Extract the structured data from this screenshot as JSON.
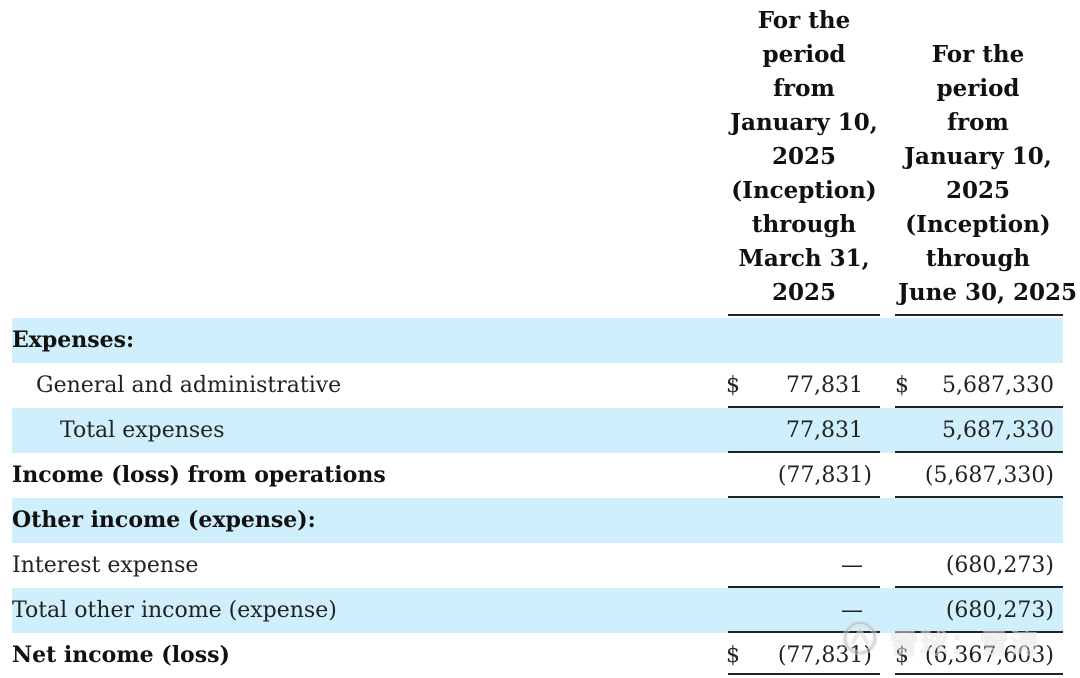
{
  "columns": {
    "col1_header": [
      "For the",
      "period",
      "from",
      "January 10,",
      "2025",
      "(Inception)",
      "through",
      "March 31,",
      "2025"
    ],
    "col2_header": [
      "For the",
      "period",
      "from",
      "January 10,",
      "2025",
      "(Inception)",
      "through",
      "June 30, 2025"
    ]
  },
  "rows": [
    {
      "label": "Expenses:",
      "cur1": "",
      "val1": "",
      "cur2": "",
      "val2": ""
    },
    {
      "label": "General and administrative",
      "cur1": "$",
      "val1": "77,831",
      "cur2": "$",
      "val2": "5,687,330"
    },
    {
      "label": "Total expenses",
      "cur1": "",
      "val1": "77,831",
      "cur2": "",
      "val2": "5,687,330"
    },
    {
      "label": "Income (loss) from operations",
      "cur1": "",
      "val1": "(77,831)",
      "cur2": "",
      "val2": "(5,687,330)"
    },
    {
      "label": "Other income (expense):",
      "cur1": "",
      "val1": "",
      "cur2": "",
      "val2": ""
    },
    {
      "label": "Interest expense",
      "cur1": "",
      "val1": "—",
      "cur2": "",
      "val2": "(680,273)"
    },
    {
      "label": "Total other income (expense)",
      "cur1": "",
      "val1": "—",
      "cur2": "",
      "val2": "(680,273)"
    },
    {
      "label": "Net income (loss)",
      "cur1": "$",
      "val1": "(77,831)",
      "cur2": "$",
      "val2": "(6,367,603)"
    }
  ],
  "watermark": {
    "text": "雪球：雪涛",
    "icon": "snowball-logo-icon"
  }
}
